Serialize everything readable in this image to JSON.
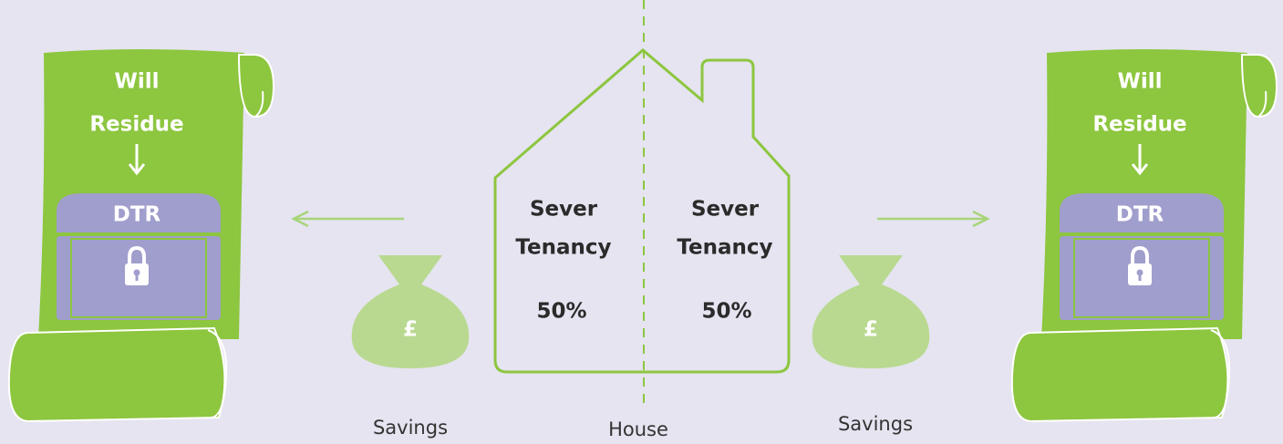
{
  "scrolls": [
    {
      "line1": "Will",
      "line2": "Residue",
      "box": "DTR"
    },
    {
      "line1": "Will",
      "line2": "Residue",
      "box": "DTR"
    }
  ],
  "house": {
    "left": {
      "line1": "Sever",
      "line2": "Tenancy",
      "share": "50%"
    },
    "right": {
      "line1": "Sever",
      "line2": "Tenancy",
      "share": "50%"
    },
    "label": "House"
  },
  "savings": [
    {
      "symbol": "£",
      "label": "Savings"
    },
    {
      "symbol": "£",
      "label": "Savings"
    }
  ]
}
